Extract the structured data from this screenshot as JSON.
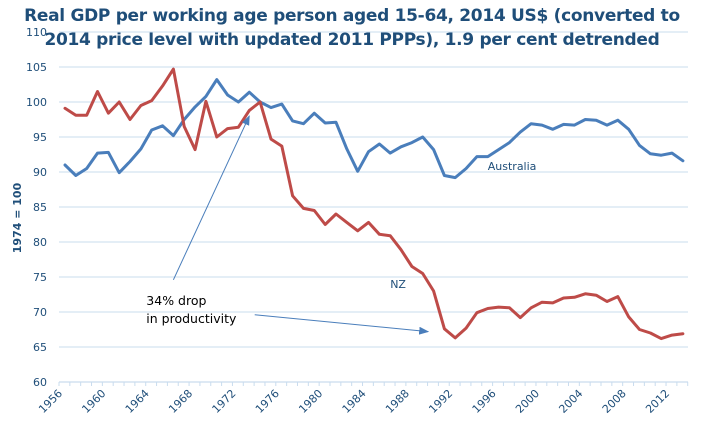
{
  "chart_data": {
    "type": "line",
    "title": "Real GDP per working age person aged 15-64, 2014 US$ (converted to 2014 price level with updated 2011 PPPs), 1.9 per cent detrended",
    "title_lines": [
      "Real GDP per working age person aged 15-64, 2014 US$ (converted to",
      "2014 price level with updated 2011 PPPs), 1.9 per cent detrended"
    ],
    "xlabel": "",
    "ylabel": "1974 = 100",
    "ylim": [
      60,
      110
    ],
    "yticks": [
      60,
      65,
      70,
      75,
      80,
      85,
      90,
      95,
      100,
      105,
      110
    ],
    "xlim": [
      1956,
      2014
    ],
    "xticks": [
      1956,
      1960,
      1964,
      1968,
      1972,
      1976,
      1980,
      1984,
      1988,
      1992,
      1996,
      2000,
      2004,
      2008,
      2012
    ],
    "grid": true,
    "legend": "none (inline labels)",
    "x": [
      1956,
      1957,
      1958,
      1959,
      1960,
      1961,
      1962,
      1963,
      1964,
      1965,
      1966,
      1967,
      1968,
      1969,
      1970,
      1971,
      1972,
      1973,
      1974,
      1975,
      1976,
      1977,
      1978,
      1979,
      1980,
      1981,
      1982,
      1983,
      1984,
      1985,
      1986,
      1987,
      1988,
      1989,
      1990,
      1991,
      1992,
      1993,
      1994,
      1995,
      1996,
      1997,
      1998,
      1999,
      2000,
      2001,
      2002,
      2003,
      2004,
      2005,
      2006,
      2007,
      2008,
      2009,
      2010,
      2011,
      2012,
      2013
    ],
    "series": [
      {
        "name": "Australia",
        "color": "#4a7ebb",
        "label_year": 1995,
        "label_value": 90.3,
        "values": [
          91.0,
          89.5,
          90.5,
          92.7,
          92.8,
          89.9,
          91.5,
          93.3,
          96.0,
          96.6,
          95.2,
          97.5,
          99.3,
          100.8,
          103.2,
          101.0,
          100.0,
          101.4,
          100.0,
          99.2,
          99.7,
          97.3,
          96.9,
          98.4,
          97.0,
          97.1,
          93.3,
          90.1,
          92.9,
          94.0,
          92.7,
          93.6,
          94.2,
          95.0,
          93.2,
          89.5,
          89.2,
          90.5,
          92.2,
          92.2,
          93.2,
          94.2,
          95.7,
          96.9,
          96.7,
          96.1,
          96.8,
          96.7,
          97.5,
          97.4,
          96.7,
          97.4,
          96.1,
          93.8,
          92.6,
          92.4,
          92.7,
          91.6
        ]
      },
      {
        "name": "NZ",
        "color": "#be4b48",
        "label_year": 1986,
        "label_value": 73.4,
        "values": [
          99.1,
          98.1,
          98.1,
          101.5,
          98.4,
          100.0,
          97.5,
          99.5,
          100.2,
          102.3,
          104.7,
          96.5,
          93.2,
          100.1,
          95.0,
          96.2,
          96.4,
          98.8,
          100.0,
          94.7,
          93.7,
          86.6,
          84.8,
          84.5,
          82.5,
          84.0,
          82.8,
          81.6,
          82.8,
          81.1,
          80.9,
          78.9,
          76.5,
          75.5,
          73.0,
          67.6,
          66.3,
          67.7,
          69.9,
          70.5,
          70.7,
          70.6,
          69.2,
          70.6,
          71.4,
          71.3,
          72.0,
          72.1,
          72.6,
          72.4,
          71.5,
          72.2,
          69.3,
          67.5,
          67.0,
          66.2,
          66.7,
          66.9
        ]
      }
    ],
    "annotations": [
      {
        "text_lines": [
          "34% drop",
          "in productivity"
        ],
        "text_year": 1963.5,
        "text_value": 71.0,
        "arrows": [
          {
            "from_year": 1966.0,
            "from_value": 74.6,
            "to_year": 1973.0,
            "to_value": 98.0
          },
          {
            "from_year": 1973.5,
            "from_value": 69.6,
            "to_year": 1989.5,
            "to_value": 67.2
          }
        ]
      }
    ],
    "colors": {
      "axis_text": "#1f4e79",
      "gridline": "#c9dcee",
      "annotation_arrow": "#4a7ebb",
      "annotation_text": "#000000"
    }
  }
}
